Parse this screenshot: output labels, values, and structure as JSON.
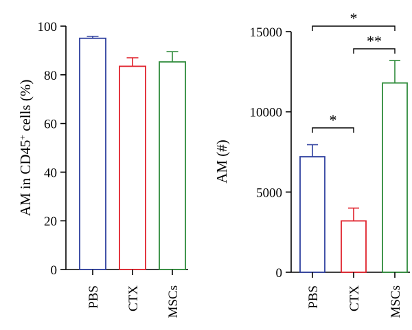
{
  "chart_data": [
    {
      "type": "bar",
      "categories": [
        "PBS",
        "CTX",
        "MSCs"
      ],
      "colors": [
        "#2e3f9e",
        "#e0222c",
        "#2e8b3a"
      ],
      "values": [
        95,
        83.5,
        85.3
      ],
      "errors": [
        0.8,
        3.5,
        4.2
      ],
      "ylabel_main": "AM in CD45",
      "ylabel_sup": "+",
      "ylabel_tail": " cells (%)",
      "ylim": [
        0,
        100
      ],
      "yticks": [
        "0",
        "20",
        "40",
        "60",
        "80",
        "100"
      ],
      "significance": []
    },
    {
      "type": "bar",
      "categories": [
        "PBS",
        "CTX",
        "MSCs"
      ],
      "colors": [
        "#2e3f9e",
        "#e0222c",
        "#2e8b3a"
      ],
      "values": [
        7200,
        3200,
        11800
      ],
      "errors": [
        750,
        800,
        1400
      ],
      "ylabel": "AM (#)",
      "ylim": [
        0,
        15000
      ],
      "yticks": [
        "0",
        "5000",
        "10000",
        "15000"
      ],
      "significance": [
        {
          "between": [
            "PBS",
            "MSCs"
          ],
          "label": "*"
        },
        {
          "between": [
            "CTX",
            "MSCs"
          ],
          "label": "**"
        },
        {
          "between": [
            "PBS",
            "CTX"
          ],
          "label": "*"
        }
      ]
    }
  ]
}
